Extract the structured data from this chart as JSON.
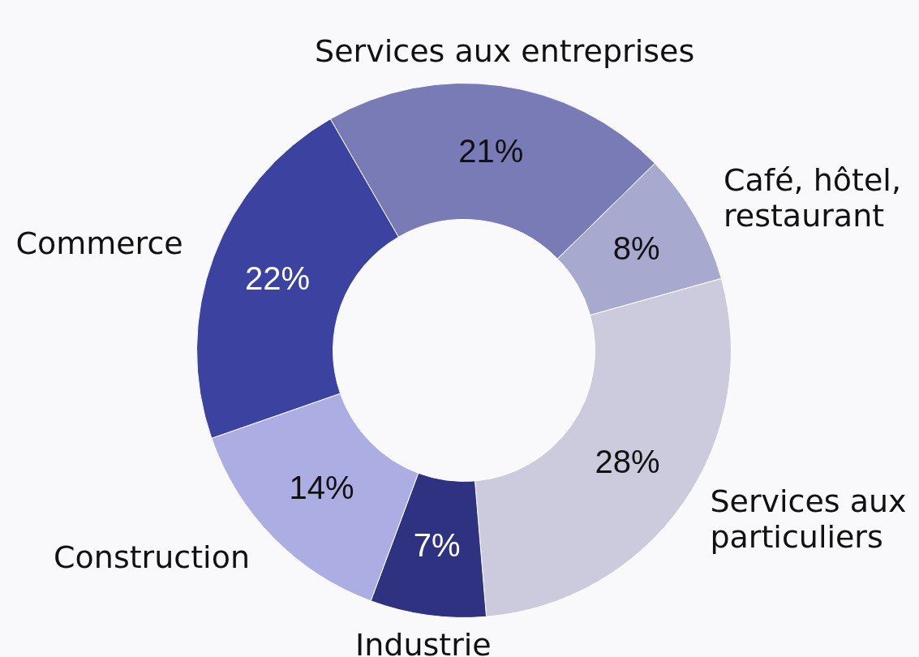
{
  "chart_data": {
    "type": "donut",
    "categories": [
      "Services aux entreprises",
      "Café, hôtel, restaurant",
      "Services aux particuliers",
      "Industrie",
      "Construction",
      "Commerce"
    ],
    "values": [
      21,
      8,
      28,
      7,
      14,
      22
    ],
    "colors": [
      "#787bb5",
      "#a8a9cf",
      "#cccbdd",
      "#2e3280",
      "#abade3",
      "#3b42a0"
    ],
    "value_labels": [
      "21%",
      "8%",
      "28%",
      "7%",
      "14%",
      "22%"
    ]
  }
}
